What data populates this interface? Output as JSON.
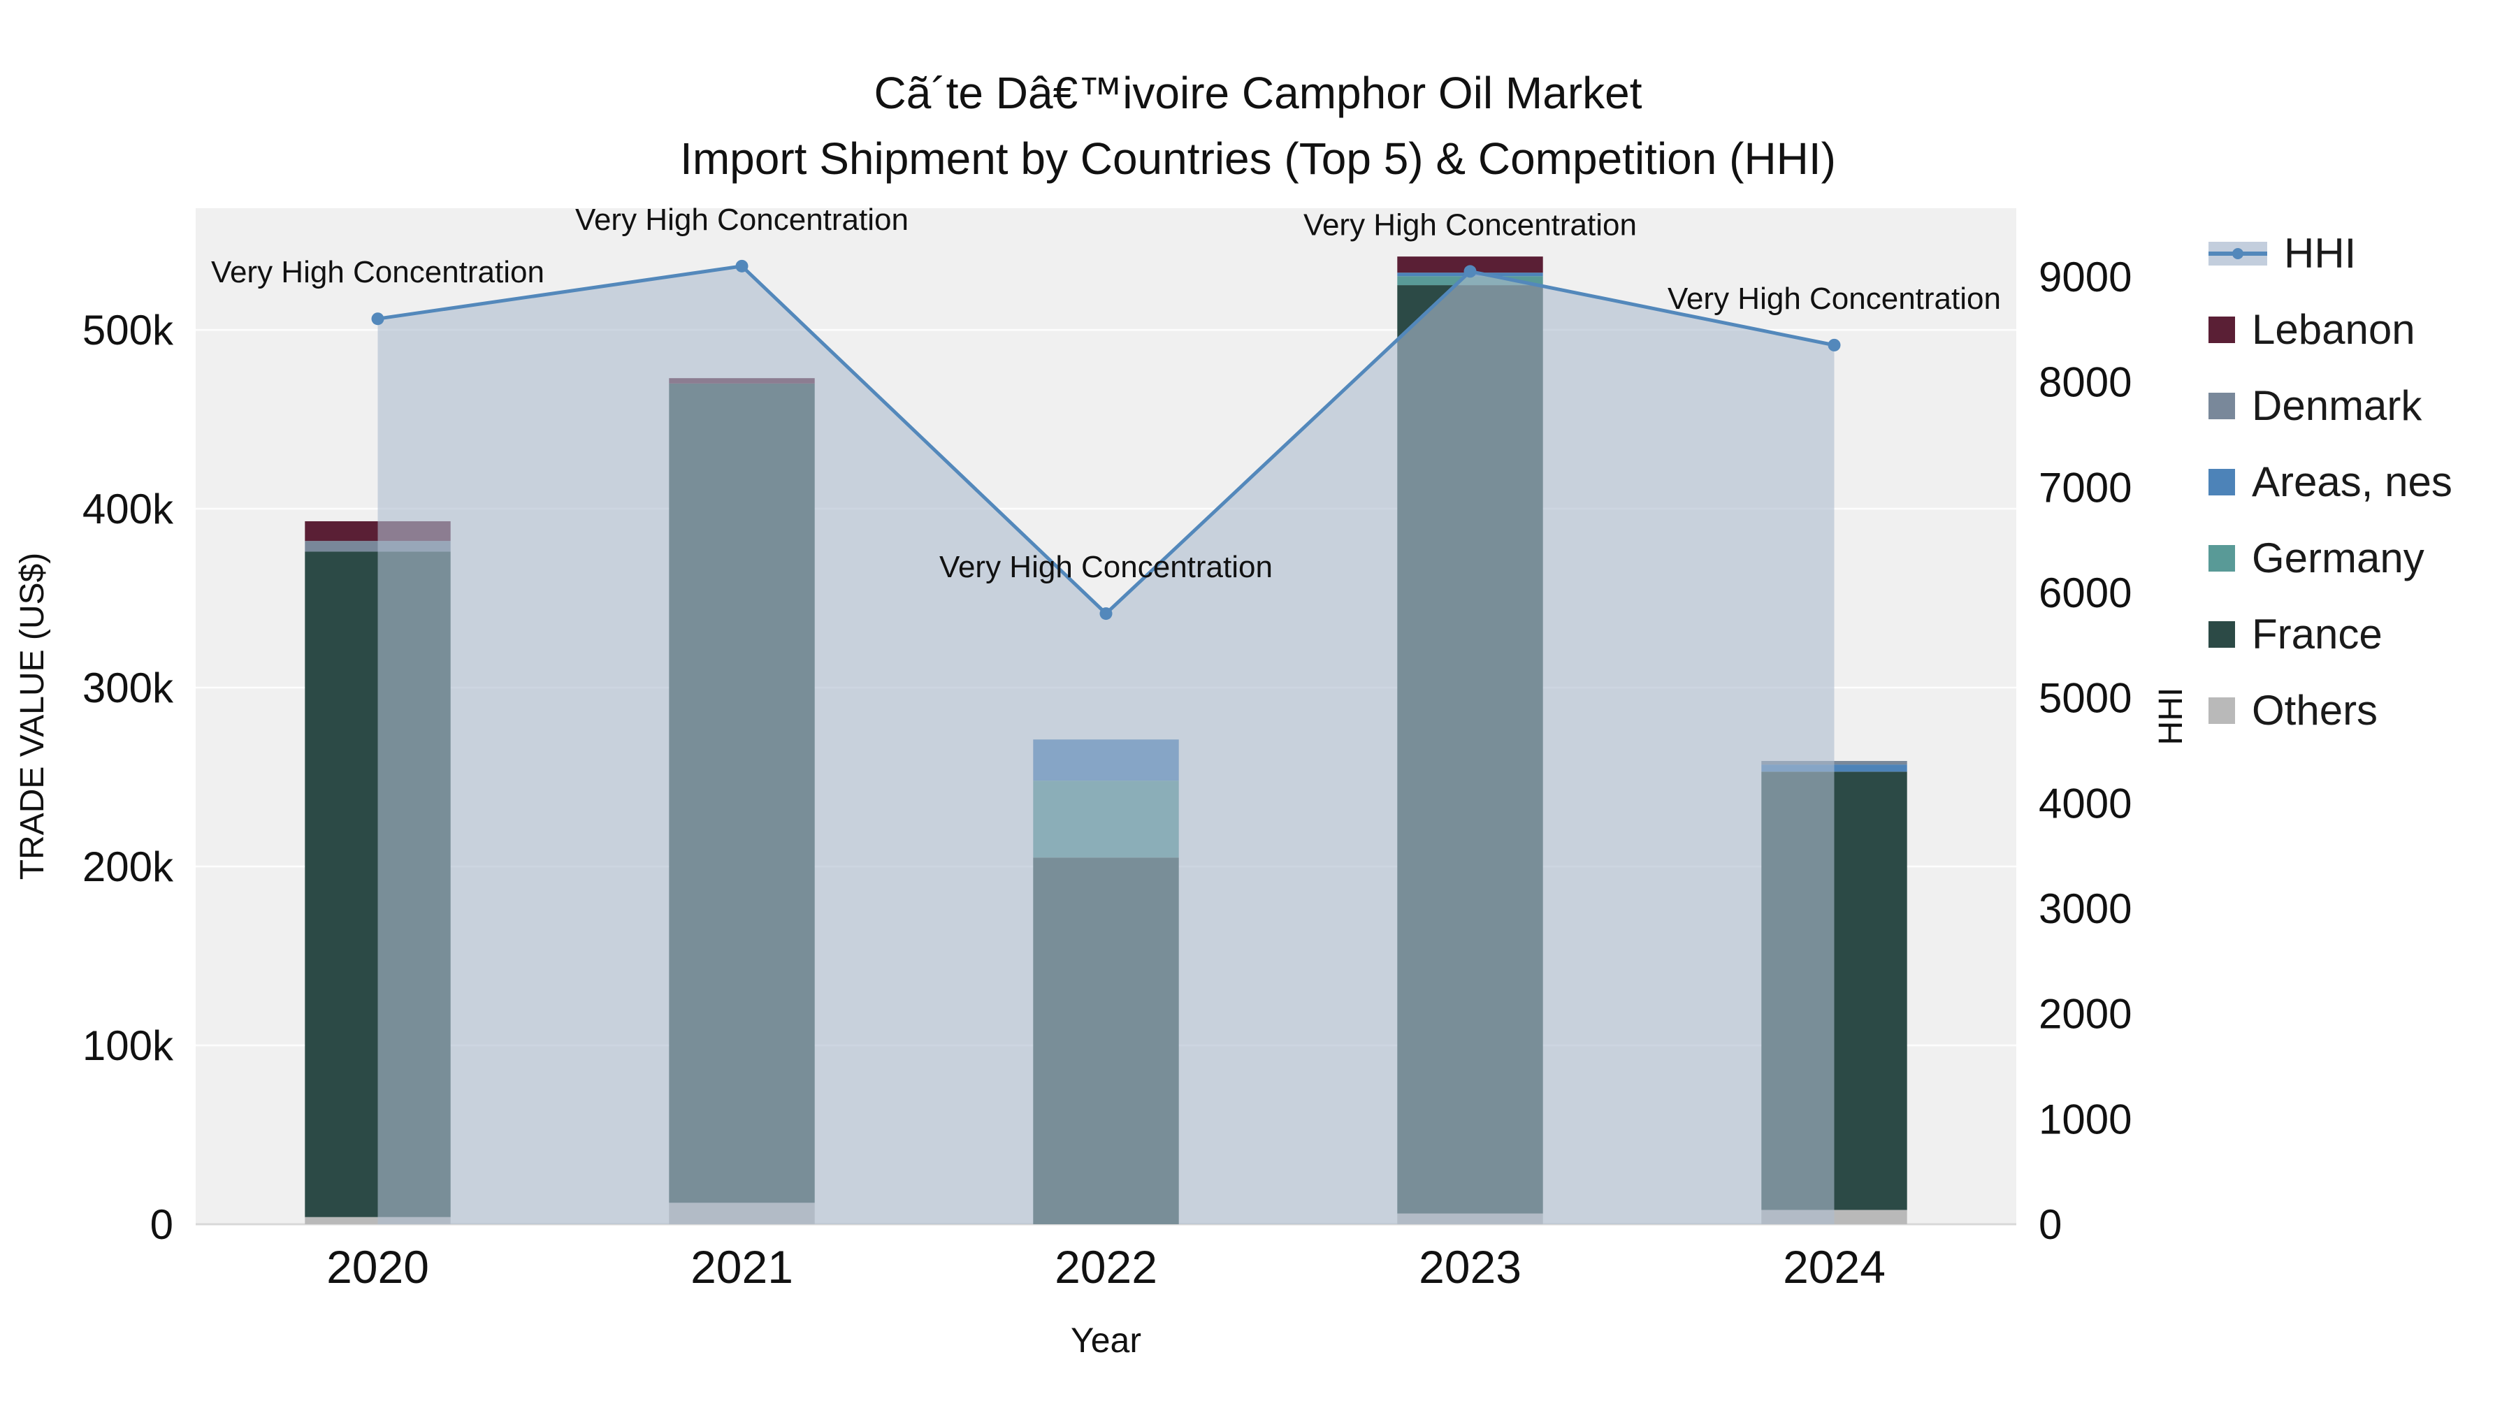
{
  "title": {
    "line1": "Cã´te Dâ€™ivoire Camphor Oil Market",
    "line2": "Import Shipment by Countries (Top 5) & Competition (HHI)"
  },
  "chart_data": {
    "type": "combo-stacked-bar-line",
    "categories": [
      "2020",
      "2021",
      "2022",
      "2023",
      "2024"
    ],
    "xlabel": "Year",
    "bar_series": [
      {
        "name": "Others",
        "color": "#b9b9b9",
        "values": [
          4000,
          12000,
          0,
          6000,
          8000
        ]
      },
      {
        "name": "France",
        "color": "#2c4a46",
        "values": [
          372000,
          458000,
          205000,
          519000,
          245000
        ]
      },
      {
        "name": "Germany",
        "color": "#599a97",
        "values": [
          0,
          0,
          43000,
          5000,
          0
        ]
      },
      {
        "name": "Areas, nes",
        "color": "#4d83b8",
        "values": [
          0,
          0,
          23000,
          2000,
          4000
        ]
      },
      {
        "name": "Denmark",
        "color": "#79889a",
        "values": [
          6000,
          0,
          0,
          0,
          2000
        ]
      },
      {
        "name": "Lebanon",
        "color": "#5a1f35",
        "values": [
          11000,
          3000,
          0,
          9000,
          0
        ]
      }
    ],
    "hhi": {
      "name": "HHI",
      "values": [
        8600,
        9100,
        5800,
        9050,
        8350
      ],
      "line_color": "#5388bb",
      "fill_color": "rgba(174,188,207,0.6)"
    },
    "annotations": [
      "Very High Concentration",
      "Very High Concentration",
      "Very High Concentration",
      "Very High Concentration",
      "Very High Concentration"
    ],
    "axes": {
      "left": {
        "title": "TRADE VALUE (US$)",
        "max": 568000,
        "tick_labels": [
          "0",
          "100k",
          "200k",
          "300k",
          "400k",
          "500k"
        ],
        "tick_values": [
          0,
          100000,
          200000,
          300000,
          400000,
          500000
        ]
      },
      "right": {
        "title": "HHI",
        "max": 9650,
        "tick_labels": [
          "0",
          "1000",
          "2000",
          "3000",
          "4000",
          "5000",
          "6000",
          "7000",
          "8000",
          "9000"
        ],
        "tick_values": [
          0,
          1000,
          2000,
          3000,
          4000,
          5000,
          6000,
          7000,
          8000,
          9000
        ]
      }
    }
  },
  "legend": {
    "items": [
      {
        "label": "HHI",
        "type": "line",
        "color": "#5388bb",
        "fill": "#c3cedd"
      },
      {
        "label": "Lebanon",
        "type": "square",
        "color": "#5a1f35"
      },
      {
        "label": "Denmark",
        "type": "square",
        "color": "#79889a"
      },
      {
        "label": "Areas, nes",
        "type": "square",
        "color": "#4d83b8"
      },
      {
        "label": "Germany",
        "type": "square",
        "color": "#599a97"
      },
      {
        "label": "France",
        "type": "square",
        "color": "#2c4a46"
      },
      {
        "label": "Others",
        "type": "square",
        "color": "#b9b9b9"
      }
    ]
  }
}
